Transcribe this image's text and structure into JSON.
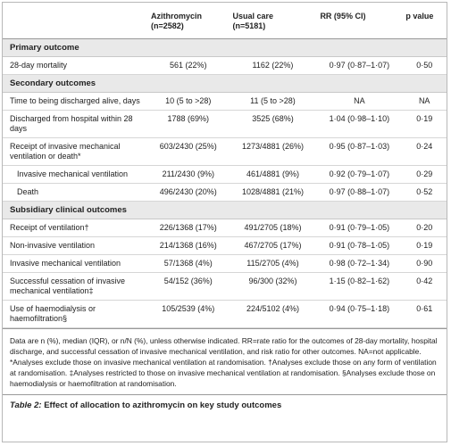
{
  "table": {
    "columns": [
      {
        "name": "Azithromycin",
        "n": "(n=2582)"
      },
      {
        "name": "Usual care",
        "n": "(n=5181)"
      },
      {
        "name": "RR (95% CI)"
      },
      {
        "name": "p value"
      }
    ],
    "sections": [
      {
        "title": "Primary outcome",
        "rows": [
          {
            "label": "28-day mortality",
            "values": [
              "561 (22%)",
              "1162 (22%)",
              "0·97 (0·87–1·07)",
              "0·50"
            ]
          }
        ]
      },
      {
        "title": "Secondary outcomes",
        "rows": [
          {
            "label": "Time to being discharged alive, days",
            "values": [
              "10 (5 to >28)",
              "11 (5 to >28)",
              "NA",
              "NA"
            ]
          },
          {
            "label": "Discharged from hospital within 28 days",
            "values": [
              "1788 (69%)",
              "3525 (68%)",
              "1·04 (0·98–1·10)",
              "0·19"
            ]
          },
          {
            "label": "Receipt of invasive mechanical ventilation or death*",
            "values": [
              "603/2430 (25%)",
              "1273/4881 (26%)",
              "0·95 (0·87–1·03)",
              "0·24"
            ]
          },
          {
            "label": "Invasive mechanical ventilation",
            "values": [
              "211/2430 (9%)",
              "461/4881 (9%)",
              "0·92 (0·79–1·07)",
              "0·29"
            ],
            "indent": true
          },
          {
            "label": "Death",
            "values": [
              "496/2430 (20%)",
              "1028/4881 (21%)",
              "0·97 (0·88–1·07)",
              "0·52"
            ],
            "indent": true
          }
        ]
      },
      {
        "title": "Subsidiary clinical outcomes",
        "rows": [
          {
            "label": "Receipt of ventilation†",
            "values": [
              "226/1368 (17%)",
              "491/2705 (18%)",
              "0·91 (0·79–1·05)",
              "0·20"
            ]
          },
          {
            "label": "Non-invasive ventilation",
            "values": [
              "214/1368 (16%)",
              "467/2705 (17%)",
              "0·91 (0·78–1·05)",
              "0·19"
            ]
          },
          {
            "label": "Invasive mechanical ventilation",
            "values": [
              "57/1368 (4%)",
              "115/2705 (4%)",
              "0·98 (0·72–1·34)",
              "0·90"
            ]
          },
          {
            "label": "Successful cessation of invasive mechanical ventilation‡",
            "values": [
              "54/152 (36%)",
              "96/300 (32%)",
              "1·15 (0·82–1·62)",
              "0·42"
            ]
          },
          {
            "label": "Use of haemodialysis or haemofiltration§",
            "values": [
              "105/2539 (4%)",
              "224/5102 (4%)",
              "0·94 (0·75–1·18)",
              "0·61"
            ]
          }
        ]
      }
    ],
    "footnote": "Data are n (%), median (IQR), or n/N (%), unless otherwise indicated. RR=rate ratio for the outcomes of 28-day mortality, hospital discharge, and successful cessation of invasive mechanical ventilation, and risk ratio for other outcomes. NA=not applicable. *Analyses exclude those on invasive mechanical ventilation at randomisation. †Analyses exclude those on any form of ventilation at randomisation. ‡Analyses restricted to those on invasive mechanical ventilation at randomisation. §Analyses exclude those on haemodialysis or haemofiltration at randomisation.",
    "caption": {
      "label": "Table 2:",
      "text": "Effect of allocation to azithromycin on key study outcomes"
    }
  }
}
